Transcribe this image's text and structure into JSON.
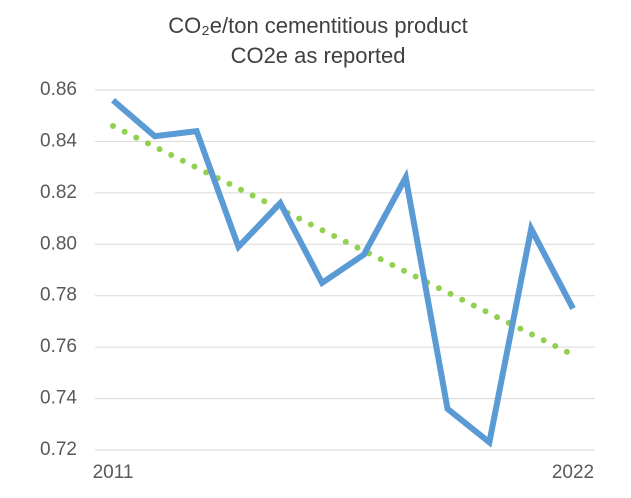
{
  "chart_data": {
    "type": "line",
    "title": "CO₂e/ton cementitious product",
    "subtitle": "CO2e as reported",
    "categories": [
      "2011",
      null,
      null,
      null,
      null,
      null,
      null,
      null,
      null,
      null,
      null,
      "2022"
    ],
    "series": [
      {
        "name": "CO2e as reported",
        "color": "#5b9bd5",
        "values": [
          0.856,
          0.842,
          0.844,
          0.799,
          0.816,
          0.785,
          0.796,
          0.826,
          0.736,
          0.723,
          0.806,
          0.775
        ]
      }
    ],
    "trendline": {
      "start": 0.846,
      "end": 0.757,
      "color": "#92d050",
      "style": "dotted"
    },
    "ylim": [
      0.72,
      0.86
    ],
    "yticks": [
      0.72,
      0.74,
      0.76,
      0.78,
      {
        "value": 0.8,
        "label": "0.80"
      },
      0.82,
      0.84,
      0.86
    ],
    "grid": true,
    "legend": false
  }
}
